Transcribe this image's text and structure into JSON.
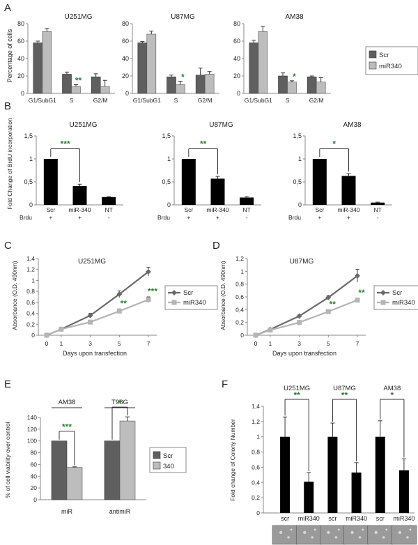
{
  "chart_data": {
    "A": {
      "label": "A",
      "type": "bar",
      "ylabel": "Percentage of cells",
      "ylim": [
        0,
        80
      ],
      "yticks": [
        "0",
        "20",
        "40",
        "60",
        "80"
      ],
      "categories": [
        "G1/SubG1",
        "S",
        "G2/M"
      ],
      "legend": [
        {
          "name": "Scr",
          "color": "#5f5f5f"
        },
        {
          "name": "miR340",
          "color": "#bdbdbd"
        }
      ],
      "charts": [
        {
          "title": "U251MG",
          "scr": [
            58,
            22,
            19
          ],
          "scr_err": [
            2,
            2.5,
            3.5
          ],
          "mir": [
            71,
            8,
            8
          ],
          "mir_err": [
            3.5,
            2,
            7
          ],
          "stars": [
            {
              "cat": 1,
              "text": "**"
            }
          ]
        },
        {
          "title": "U87MG",
          "scr": [
            58,
            19,
            21
          ],
          "scr_err": [
            1.5,
            2,
            8
          ],
          "mir": [
            68,
            10,
            22
          ],
          "mir_err": [
            3.5,
            4,
            3
          ],
          "stars": [
            {
              "cat": 1,
              "text": "*"
            }
          ]
        },
        {
          "title": "AM38",
          "scr": [
            58,
            20,
            19
          ],
          "scr_err": [
            3,
            3.5,
            1
          ],
          "mir": [
            71,
            13,
            13
          ],
          "mir_err": [
            6,
            1.5,
            5
          ],
          "stars": [
            {
              "cat": 1,
              "text": "*"
            }
          ]
        }
      ]
    },
    "B": {
      "label": "B",
      "type": "bar",
      "ylabel": "Fold Change of BrdU incorporation",
      "ylim": [
        0,
        1.5
      ],
      "yticks": [
        "0",
        "0,5",
        "1",
        "1,5"
      ],
      "categories": [
        "Scr",
        "miR-340",
        "NT"
      ],
      "row_label": "Brdu",
      "row_signs": [
        "+",
        "+",
        "-"
      ],
      "charts": [
        {
          "title": "U251MG",
          "values": [
            1.0,
            0.41,
            0.17
          ],
          "err": [
            0,
            0.04,
            0.01
          ],
          "sig": "***"
        },
        {
          "title": "U87MG",
          "values": [
            1.0,
            0.57,
            0.16
          ],
          "err": [
            0,
            0.05,
            0.02
          ],
          "sig": "**"
        },
        {
          "title": "AM38",
          "values": [
            1.0,
            0.63,
            0.05
          ],
          "err": [
            0,
            0.05,
            0.01
          ],
          "sig": "*"
        }
      ]
    },
    "C": {
      "label": "C",
      "type": "line",
      "title": "U251MG",
      "ylabel": "Absorbance (O.D. 490nm)",
      "xlabel": "Days upon transfection",
      "x": [
        0,
        1,
        3,
        5,
        7
      ],
      "ylim": [
        0,
        1.4
      ],
      "yticks": [
        "0",
        "0,2",
        "0,4",
        "0,6",
        "0,8",
        "1",
        "1,2",
        "1,4"
      ],
      "series": [
        {
          "name": "Scr",
          "values": [
            0,
            0.11,
            0.36,
            0.75,
            1.16
          ],
          "err": [
            0,
            0.02,
            0.04,
            0.06,
            0.08
          ],
          "color": "#6a6a6a",
          "marker": "diamond"
        },
        {
          "name": "miR340",
          "values": [
            0,
            0.11,
            0.24,
            0.44,
            0.65
          ],
          "err": [
            0,
            0.01,
            0.02,
            0.04,
            0.05
          ],
          "color": "#b5b5b5",
          "marker": "square"
        }
      ],
      "stars": [
        {
          "x": 5,
          "text": "**"
        },
        {
          "x": 7,
          "text": "***"
        }
      ]
    },
    "D": {
      "label": "D",
      "type": "line",
      "title": "U87MG",
      "ylabel": "Absorbance (O.D. 490nm)",
      "xlabel": "Days upon transfection",
      "x": [
        0,
        1,
        3,
        5,
        7
      ],
      "ylim": [
        0,
        1.2
      ],
      "yticks": [
        "0",
        "0,2",
        "0,4",
        "0,6",
        "0,8",
        "1",
        "1,2"
      ],
      "series": [
        {
          "name": "Scr",
          "values": [
            0,
            0.09,
            0.3,
            0.59,
            0.93
          ],
          "err": [
            0,
            0.01,
            0.02,
            0.03,
            0.1
          ],
          "color": "#6a6a6a",
          "marker": "diamond"
        },
        {
          "name": "miR340",
          "values": [
            0,
            0.08,
            0.2,
            0.37,
            0.55
          ],
          "err": [
            0,
            0.01,
            0.02,
            0.03,
            0.03
          ],
          "color": "#b5b5b5",
          "marker": "square"
        }
      ],
      "stars": [
        {
          "x": 5,
          "text": "**"
        },
        {
          "x": 7,
          "text": "**"
        }
      ]
    },
    "E": {
      "label": "E",
      "type": "bar",
      "ylabel": "% of cell viability over control",
      "ylim": [
        0,
        140
      ],
      "yticks": [
        "0",
        "20",
        "40",
        "60",
        "80",
        "100",
        "120",
        "140"
      ],
      "categories": [
        "miR",
        "antimiR"
      ],
      "group_titles": [
        "AM38",
        "T98G"
      ],
      "legend": [
        {
          "name": "Scr",
          "color": "#5f5f5f"
        },
        {
          "name": "340",
          "color": "#bdbdbd"
        }
      ],
      "series": [
        {
          "name": "Scr",
          "values": [
            100,
            100
          ],
          "err": [
            0,
            0
          ],
          "color": "#5f5f5f"
        },
        {
          "name": "340",
          "values": [
            55,
            134
          ],
          "err": [
            1,
            7
          ],
          "color": "#bdbdbd"
        }
      ],
      "sig": [
        "***",
        "*"
      ]
    },
    "F": {
      "label": "F",
      "type": "bar",
      "ylabel": "Fold change of Colony Number",
      "ylim": [
        0,
        1.4
      ],
      "yticks": [
        "0",
        "0,2",
        "0,4",
        "0,6",
        "0,8",
        "1",
        "1,2",
        "1,4"
      ],
      "categories": [
        "scr",
        "miR340",
        "scr",
        "miR340",
        "scr",
        "miR340"
      ],
      "group_titles": [
        "U251MG",
        "U87MG",
        "AM38"
      ],
      "values": [
        1.0,
        0.41,
        1.0,
        0.53,
        1.0,
        0.56
      ],
      "err": [
        0.26,
        0.12,
        0.18,
        0.13,
        0.21,
        0.15
      ],
      "sig": [
        "**",
        "**",
        "*"
      ]
    }
  }
}
